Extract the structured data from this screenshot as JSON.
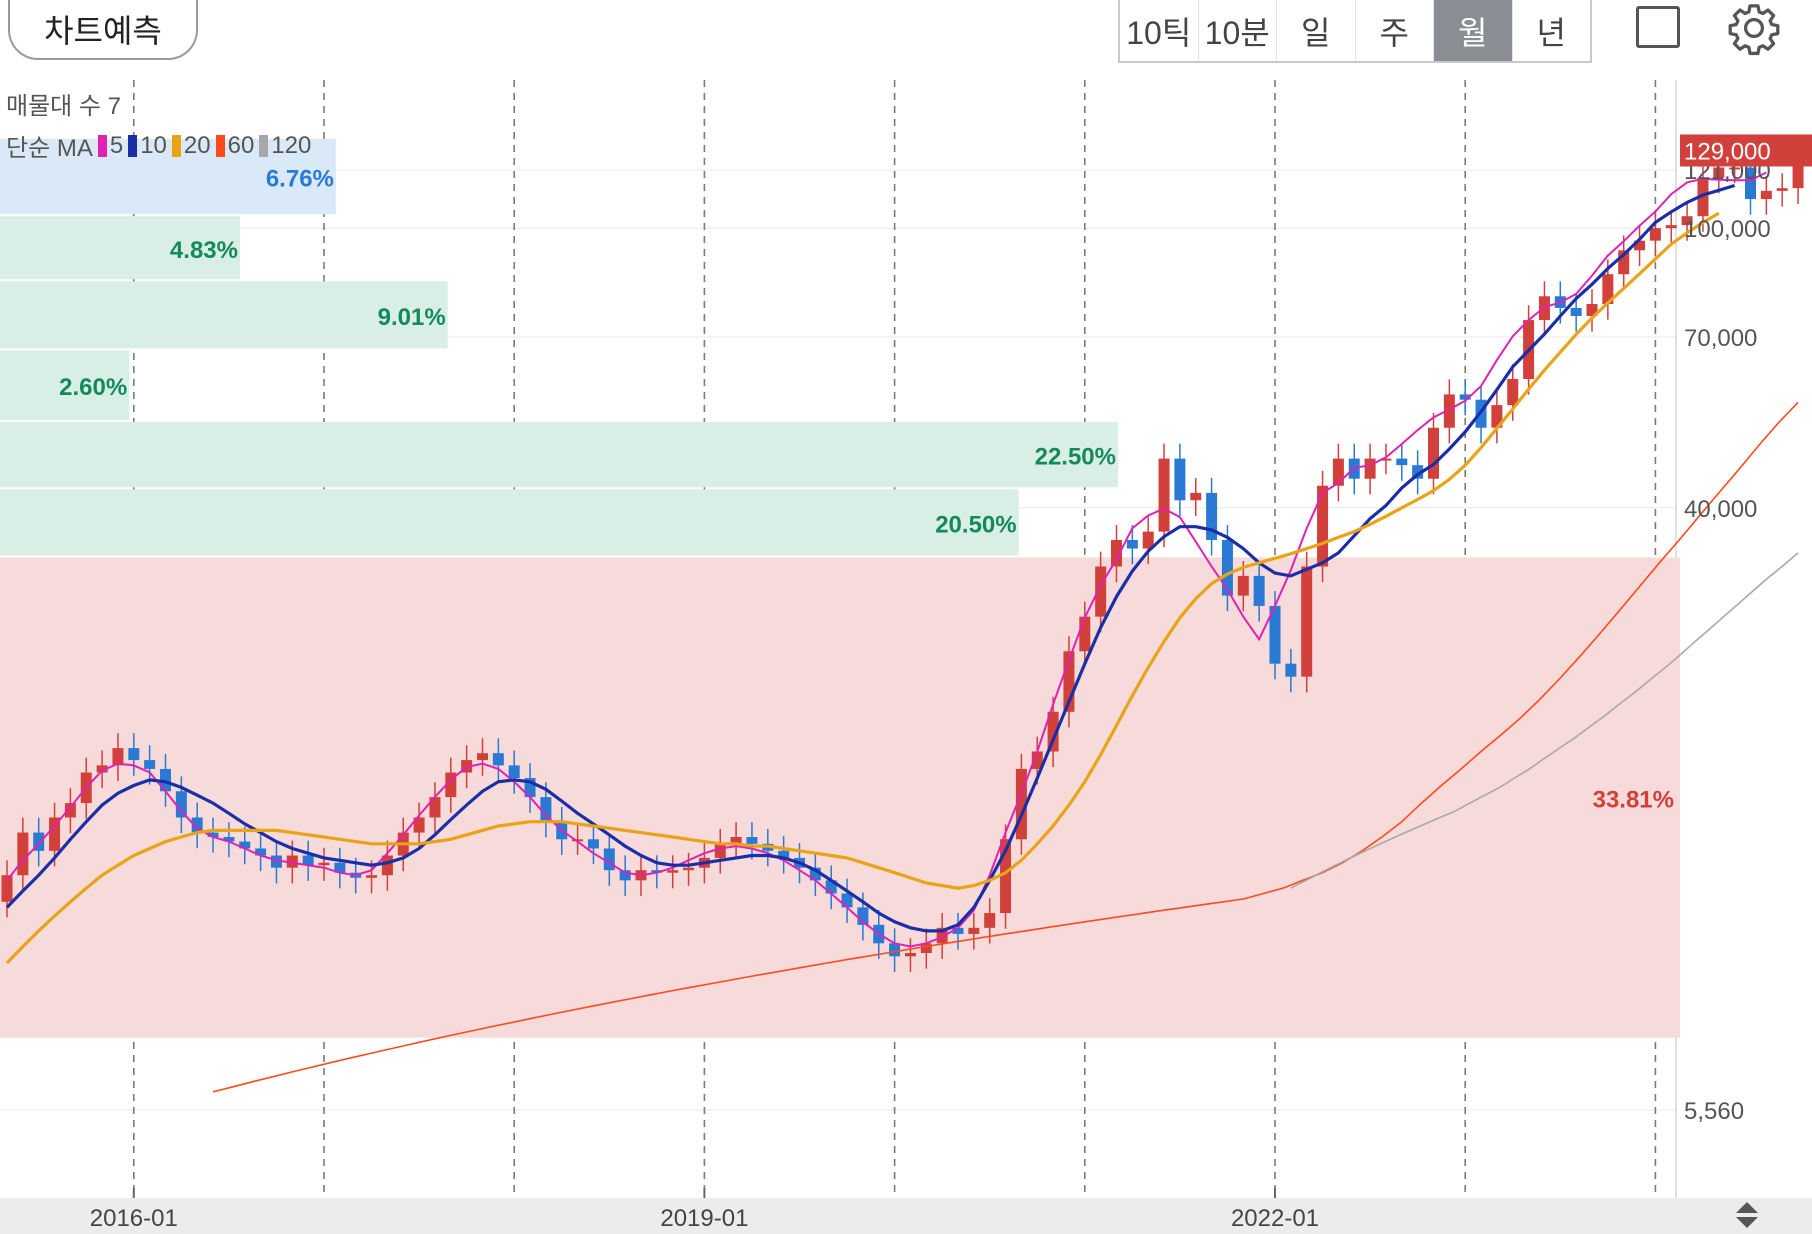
{
  "toolbar": {
    "predict_label": "차트예측",
    "periods": [
      "10틱",
      "10분",
      "일",
      "주",
      "월",
      "년"
    ],
    "active_period": "월",
    "fullscreen_icon": "square-icon",
    "settings_icon": "gear-icon"
  },
  "legend": {
    "volume_profile": "매물대 수 7",
    "ma_prefix": "단순 MA",
    "ma": [
      {
        "period": "5",
        "color": "#e021b4"
      },
      {
        "period": "10",
        "color": "#1a2ea8"
      },
      {
        "period": "20",
        "color": "#e8a317"
      },
      {
        "period": "60",
        "color": "#ff4a1c"
      },
      {
        "period": "120",
        "color": "#a8a8a8"
      }
    ]
  },
  "colors": {
    "up": "#d2403c",
    "down": "#2a7ad4",
    "grid": "#e8e8e8"
  },
  "chart_data": {
    "type": "candlestick",
    "interval": "monthly",
    "y_scale": "log",
    "ylim": [
      5560,
      140000
    ],
    "y_ticks": [
      5560,
      40000,
      70000,
      100000,
      121000
    ],
    "y_tick_labels": [
      "5,560",
      "40,000",
      "70,000",
      "100,000",
      "121,000"
    ],
    "x_tick_labels": [
      "2016-01",
      "2019-01",
      "2022-01"
    ],
    "current_price": 129000,
    "current_price_label": "129,000",
    "volume_profile": [
      {
        "low": 104000,
        "high": 134000,
        "pct": 6.76,
        "label": "6.76%"
      },
      {
        "low": 84000,
        "high": 104000,
        "pct": 4.83,
        "label": "4.83%"
      },
      {
        "low": 67000,
        "high": 84000,
        "pct": 9.01,
        "label": "9.01%"
      },
      {
        "low": 53000,
        "high": 67000,
        "pct": 2.6,
        "label": "2.60%"
      },
      {
        "low": 42500,
        "high": 53000,
        "pct": 22.5,
        "label": "22.50%"
      },
      {
        "low": 34000,
        "high": 42500,
        "pct": 20.5,
        "label": "20.50%",
        "highlight": false
      },
      {
        "low": 7000,
        "high": 34000,
        "pct": 33.81,
        "label": "33.81%",
        "highlight": true
      }
    ],
    "closes": [
      12000,
      13800,
      13000,
      14500,
      15200,
      16800,
      17200,
      18200,
      17500,
      17000,
      15800,
      14500,
      13800,
      13600,
      13400,
      13100,
      12800,
      12300,
      12800,
      12400,
      12500,
      12100,
      11900,
      12000,
      12800,
      13800,
      14500,
      15500,
      16800,
      17500,
      17900,
      17200,
      16500,
      15500,
      14300,
      13500,
      13500,
      13100,
      12200,
      11800,
      12200,
      12100,
      12200,
      12300,
      12700,
      13300,
      13600,
      13300,
      13000,
      12700,
      12300,
      11800,
      11300,
      10800,
      10200,
      9600,
      9200,
      9300,
      9600,
      10100,
      9900,
      10100,
      10600,
      13500,
      17000,
      18000,
      20500,
      25000,
      28000,
      33000,
      36000,
      35000,
      37000,
      47000,
      41000,
      42000,
      36000,
      30000,
      32000,
      29000,
      24000,
      23000,
      33000,
      43000,
      47000,
      44000,
      47000,
      47000,
      46000,
      44000,
      52000,
      58000,
      57000,
      52000,
      56000,
      61000,
      74000,
      80000,
      77000,
      75000,
      78000,
      86000,
      93000,
      96000,
      100000,
      101000,
      104000,
      118000,
      122000,
      122000,
      110000,
      113000,
      114000,
      129000
    ],
    "opens": [
      11000,
      12000,
      13800,
      13000,
      14500,
      15200,
      16800,
      17200,
      18200,
      17500,
      17000,
      15800,
      14500,
      13800,
      13600,
      13400,
      13100,
      12800,
      12300,
      12800,
      12400,
      12500,
      12100,
      11900,
      12000,
      12800,
      13800,
      14500,
      15500,
      16800,
      17500,
      17900,
      17200,
      16500,
      15500,
      14300,
      13500,
      13500,
      13100,
      12200,
      11800,
      12200,
      12100,
      12200,
      12300,
      12700,
      13300,
      13600,
      13300,
      13000,
      12700,
      12300,
      11800,
      11300,
      10800,
      10200,
      9600,
      9200,
      9300,
      9600,
      10100,
      9900,
      10100,
      10600,
      13500,
      17000,
      18000,
      20500,
      25000,
      28000,
      33000,
      36000,
      35000,
      37000,
      47000,
      41000,
      42000,
      36000,
      30000,
      32000,
      29000,
      24000,
      23000,
      33000,
      43000,
      47000,
      44000,
      47000,
      47000,
      46000,
      44000,
      52000,
      58000,
      57000,
      52000,
      56000,
      61000,
      74000,
      80000,
      77000,
      75000,
      78000,
      86000,
      93000,
      96000,
      100000,
      101000,
      104000,
      118000,
      122000,
      122000,
      110000,
      113000,
      114000
    ],
    "series": [
      {
        "name": "5",
        "values": [
          11800,
          12600,
          13300,
          14100,
          15000,
          16000,
          16900,
          17300,
          17200,
          16800,
          15800,
          14800,
          14000,
          13600,
          13400,
          13100,
          12800,
          12600,
          12500,
          12400,
          12300,
          12100,
          12000,
          12200,
          12900,
          13700,
          14600,
          15500,
          16400,
          17100,
          17300,
          17000,
          16300,
          15500,
          14600,
          13900,
          13400,
          12900,
          12500,
          12100,
          12000,
          12100,
          12300,
          12600,
          12900,
          13100,
          13200,
          13100,
          12900,
          12600,
          12200,
          11800,
          11300,
          10800,
          10300,
          9900,
          9600,
          9500,
          9600,
          9800,
          10100,
          10700,
          12000,
          13800,
          15700,
          18000,
          21000,
          24300,
          27900,
          31000,
          33800,
          37400,
          39000,
          39900,
          38800,
          35800,
          33000,
          30600,
          28000,
          26000,
          29000,
          32600,
          37400,
          42000,
          43400,
          45600,
          46000,
          47200,
          49300,
          51600,
          53800,
          55200,
          56800,
          59600,
          64900,
          70200,
          74000,
          77200,
          78400,
          80600,
          85600,
          91400,
          95800,
          100800,
          105600,
          111800,
          116200,
          117600,
          117200,
          117000,
          117000,
          120000
        ]
      },
      {
        "name": "10",
        "values": [
          10800,
          11400,
          12000,
          12700,
          13500,
          14300,
          15100,
          15700,
          16100,
          16400,
          16300,
          16000,
          15600,
          15200,
          14700,
          14200,
          13800,
          13400,
          13100,
          12900,
          12700,
          12600,
          12500,
          12400,
          12500,
          12700,
          13100,
          13700,
          14400,
          15100,
          15800,
          16300,
          16400,
          16300,
          15900,
          15300,
          14700,
          14200,
          13700,
          13200,
          12800,
          12500,
          12400,
          12400,
          12500,
          12600,
          12700,
          12800,
          12800,
          12700,
          12500,
          12200,
          11800,
          11400,
          11000,
          10600,
          10300,
          10100,
          10000,
          10000,
          10200,
          10800,
          11800,
          13000,
          14600,
          16500,
          18700,
          21200,
          24000,
          27000,
          29900,
          32500,
          34700,
          36400,
          37600,
          37600,
          37200,
          36300,
          35000,
          33400,
          32300,
          32000,
          32700,
          33400,
          34500,
          36500,
          38600,
          40300,
          42700,
          44600,
          46100,
          48500,
          51300,
          54800,
          58900,
          63500,
          67000,
          70700,
          75000,
          79400,
          83200,
          87600,
          91700,
          96400,
          101900,
          105500,
          108800,
          111500,
          113200,
          115000
        ]
      },
      {
        "name": "20",
        "values": [
          9000,
          9500,
          10000,
          10500,
          11000,
          11500,
          12000,
          12400,
          12800,
          13100,
          13400,
          13600,
          13800,
          13900,
          13900,
          13900,
          13900,
          13900,
          13800,
          13700,
          13600,
          13500,
          13400,
          13300,
          13300,
          13300,
          13300,
          13400,
          13500,
          13700,
          13900,
          14100,
          14200,
          14300,
          14300,
          14300,
          14200,
          14100,
          14000,
          13900,
          13800,
          13700,
          13600,
          13500,
          13400,
          13300,
          13300,
          13200,
          13200,
          13100,
          13000,
          12900,
          12800,
          12700,
          12500,
          12300,
          12100,
          11900,
          11700,
          11600,
          11500,
          11600,
          11800,
          12100,
          12600,
          13300,
          14100,
          15100,
          16300,
          17800,
          19600,
          21600,
          23700,
          25800,
          27900,
          29700,
          31200,
          32200,
          32900,
          33400,
          33900,
          34400,
          35000,
          35600,
          36300,
          37000,
          37900,
          38900,
          40000,
          41100,
          42300,
          43900,
          46000,
          48700,
          51900,
          55300,
          59000,
          62800,
          66600,
          70600,
          74500,
          78300,
          82100,
          86100,
          90400,
          94900,
          98500,
          101900,
          105000
        ]
      },
      {
        "name": "60",
        "values": [
          5900,
          6000,
          6100,
          6200,
          6300,
          6400,
          6500,
          6600,
          6700,
          6800,
          6900,
          7000,
          7100,
          7200,
          7300,
          7400,
          7500,
          7600,
          7700,
          7800,
          7900,
          8000,
          8100,
          8200,
          8300,
          8400,
          8500,
          8600,
          8700,
          8800,
          8900,
          9000,
          9100,
          9200,
          9300,
          9400,
          9500,
          9600,
          9700,
          9800,
          9900,
          10000,
          10100,
          10200,
          10300,
          10400,
          10500,
          10600,
          10700,
          10800,
          10900,
          11000,
          11100,
          11300,
          11500,
          11800,
          12100,
          12500,
          13000,
          13600,
          14300,
          15200,
          16100,
          17000,
          18000,
          19000,
          20100,
          21400,
          22900,
          24600,
          26500,
          28600,
          30900,
          33400,
          36000,
          38900,
          42000,
          45300,
          49000,
          52800,
          56500
        ]
      },
      {
        "name": "120",
        "values": [
          11500,
          11800,
          12100,
          12400,
          12700,
          13000,
          13300,
          13600,
          13900,
          14200,
          14500,
          14800,
          15200,
          15600,
          16000,
          16500,
          17000,
          17600,
          18200,
          18800,
          19500,
          20200,
          21000,
          21800,
          22700,
          23600,
          24600,
          25700,
          26800,
          28000,
          29200,
          30500,
          31800,
          33100,
          34500
        ]
      }
    ],
    "series_start_index": {
      "5": 0,
      "10": 0,
      "20": 0,
      "60": 13,
      "120": 81
    }
  }
}
